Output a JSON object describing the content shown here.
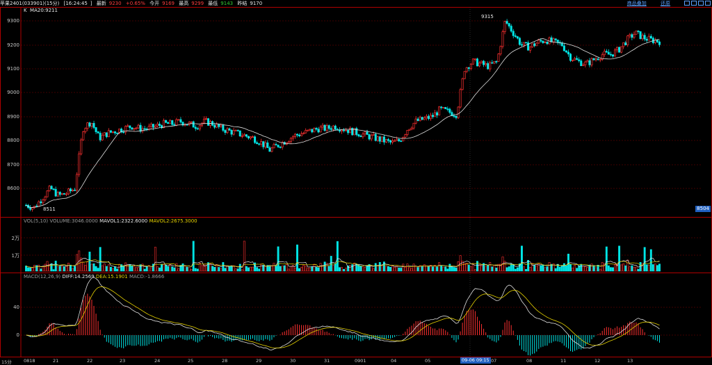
{
  "topbar": {
    "instrument": "苹果2401(033901)(15分)",
    "time": "16:24:45",
    "last_label": "最新",
    "last_value": "9230",
    "change": "+0.65%",
    "open_label": "今开",
    "open_value": "9169",
    "high_label": "最高",
    "high_value": "9299",
    "low_label": "最低",
    "low_value": "9143",
    "prev_label": "昨结",
    "prev_value": "9170",
    "link_add": "商品叠加",
    "link_sleep": "还原"
  },
  "main_legend": {
    "k": "K",
    "ma": "MA20:9211"
  },
  "price_axis": [
    "9300",
    "9200",
    "9100",
    "9000",
    "8900",
    "8800",
    "8700",
    "8600"
  ],
  "price_marks": {
    "high": "9315",
    "low": "8511",
    "current": "8504"
  },
  "vol_legend": {
    "label": "VOL(5,10)",
    "volume": "VOLUME:3046.0000",
    "mavol1": "MAVOL1:2322.6000",
    "mavol2": "MAVOL2:2675.3000"
  },
  "vol_axis": [
    "2万",
    "1万"
  ],
  "macd_legend": {
    "label": "MACD(12,26,9)",
    "diff": "DIFF:14.2569",
    "dea": "DEA:15.1901",
    "macd": "MACD:-1.8666"
  },
  "macd_axis": [
    "40",
    "0"
  ],
  "x_axis": {
    "unit": "15分",
    "labels": [
      "0818",
      "21",
      "22",
      "23",
      "24",
      "25",
      "28",
      "29",
      "30",
      "31",
      "0901",
      "04",
      "05",
      "07",
      "08",
      "11",
      "12",
      "13"
    ],
    "cursor_time": "09-06 09:15"
  },
  "colors": {
    "up": "#ff3030",
    "down": "#00e5e5",
    "ma": "#e0e0e0",
    "dea": "#e6d200",
    "grid": "#800000"
  },
  "chart_data": {
    "type": "candlestick",
    "ma_period": 20,
    "ylim": [
      8500,
      9320
    ],
    "price_trend": [
      8530,
      8520,
      8560,
      8600,
      8570,
      8580,
      8600,
      8850,
      8880,
      8810,
      8830,
      8840,
      8850,
      8860,
      8850,
      8850,
      8860,
      8870,
      8870,
      8880,
      8870,
      8860,
      8880,
      8870,
      8850,
      8840,
      8830,
      8820,
      8810,
      8790,
      8760,
      8780,
      8800,
      8820,
      8830,
      8840,
      8850,
      8850,
      8860,
      8850,
      8840,
      8830,
      8820,
      8810,
      8800,
      8790,
      8800,
      8850,
      8880,
      8890,
      8900,
      8930,
      8920,
      8910,
      9100,
      9130,
      9120,
      9110,
      9130,
      9300,
      9250,
      9200,
      9190,
      9210,
      9220,
      9210,
      9200,
      9150,
      9130,
      9120,
      9140,
      9160,
      9160,
      9180,
      9220,
      9250,
      9230,
      9220,
      9215
    ]
  }
}
